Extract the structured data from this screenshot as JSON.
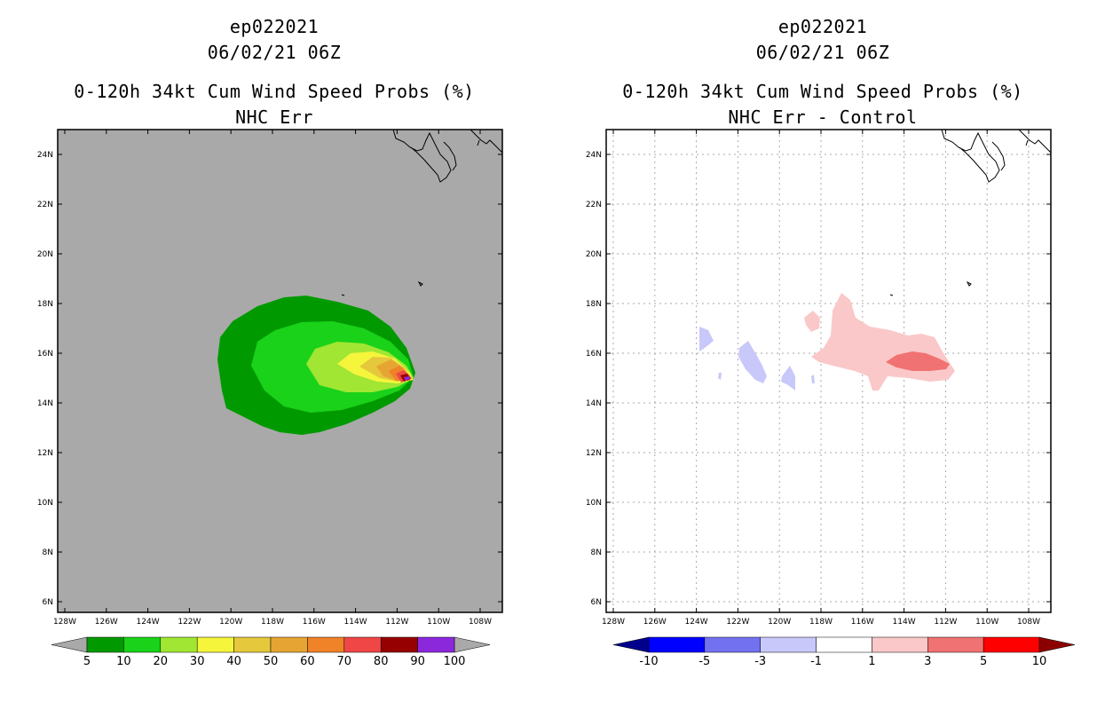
{
  "panels": [
    {
      "id": "left",
      "storm_id": "ep022021",
      "datetime": "06/02/21 06Z",
      "title": "0-120h 34kt Cum Wind Speed Probs (%)",
      "subtitle": "NHC Err",
      "background_color": "#a9a9a9",
      "colorbar": {
        "labels": [
          "5",
          "10",
          "20",
          "30",
          "40",
          "50",
          "60",
          "70",
          "80",
          "90",
          "100"
        ],
        "colors": [
          "#009a00",
          "#19d219",
          "#a0e632",
          "#f5f53c",
          "#e6c83c",
          "#e6a532",
          "#f08228",
          "#f04646",
          "#960000",
          "#8c28dc"
        ],
        "end_colors": [
          "#a9a9a9",
          "#a9a9a9"
        ]
      }
    },
    {
      "id": "right",
      "storm_id": "ep022021",
      "datetime": "06/02/21 06Z",
      "title": "0-120h 34kt Cum Wind Speed Probs (%)",
      "subtitle": "NHC Err - Control",
      "background_color": "#ffffff",
      "colorbar": {
        "labels": [
          "-10",
          "-5",
          "-3",
          "-1",
          "1",
          "3",
          "5",
          "10"
        ],
        "colors": [
          "#0000ff",
          "#7272f0",
          "#c8c8fa",
          "#ffffff",
          "#fac8c8",
          "#f07272",
          "#ff0000"
        ],
        "end_colors": [
          "#00008c",
          "#8c0000"
        ]
      }
    }
  ],
  "map": {
    "lat_labels": [
      "24N",
      "22N",
      "20N",
      "18N",
      "16N",
      "14N",
      "12N",
      "10N",
      "8N",
      "6N"
    ],
    "lon_labels": [
      "128W",
      "126W",
      "124W",
      "122W",
      "120W",
      "118W",
      "116W",
      "114W",
      "112W",
      "110W",
      "108W"
    ]
  }
}
